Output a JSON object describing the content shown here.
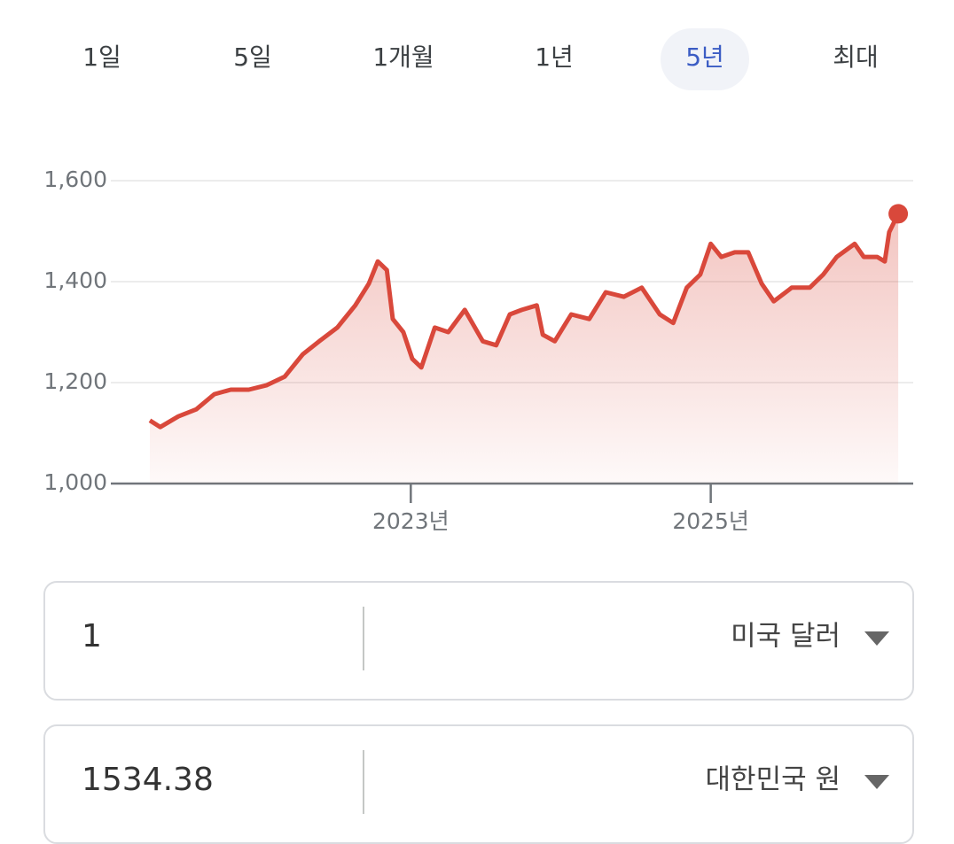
{
  "tabs": [
    "1일",
    "5일",
    "1개월",
    "1년",
    "5년",
    "최대"
  ],
  "selected_tab": 4,
  "chart_data": {
    "type": "line",
    "x": [
      2021.26,
      2021.33,
      2021.45,
      2021.57,
      2021.69,
      2021.8,
      2021.92,
      2022.04,
      2022.16,
      2022.28,
      2022.39,
      2022.51,
      2022.63,
      2022.72,
      2022.78,
      2022.84,
      2022.88,
      2022.95,
      2023.01,
      2023.07,
      2023.16,
      2023.25,
      2023.36,
      2023.48,
      2023.57,
      2023.66,
      2023.74,
      2023.84,
      2023.88,
      2023.96,
      2024.07,
      2024.19,
      2024.3,
      2024.42,
      2024.54,
      2024.66,
      2024.75,
      2024.84,
      2024.93,
      2025.0,
      2025.07,
      2025.16,
      2025.25,
      2025.34,
      2025.42,
      2025.54,
      2025.66,
      2025.75,
      2025.84,
      2025.96,
      2026.02,
      2026.11,
      2026.16,
      2026.19,
      2026.25
    ],
    "series": [
      {
        "color": "#d9483b",
        "values": [
          1125,
          1112,
          1133,
          1147,
          1177,
          1186,
          1186,
          1195,
          1212,
          1256,
          1282,
          1309,
          1353,
          1396,
          1440,
          1423,
          1326,
          1300,
          1247,
          1230,
          1309,
          1300,
          1344,
          1282,
          1274,
          1335,
          1344,
          1353,
          1295,
          1282,
          1335,
          1326,
          1379,
          1370,
          1388,
          1335,
          1318,
          1388,
          1414,
          1475,
          1449,
          1458,
          1458,
          1396,
          1361,
          1388,
          1388,
          1414,
          1449,
          1475,
          1449,
          1449,
          1440,
          1498,
          1534.38
        ]
      }
    ],
    "xlim": [
      2021,
      2026.35
    ],
    "xticks": [
      {
        "value": 2023,
        "label": "2023년"
      },
      {
        "value": 2025,
        "label": "2025년"
      }
    ],
    "ylim": [
      1000,
      1600
    ],
    "yticks": [
      {
        "value": 1000,
        "label": "1,000"
      },
      {
        "value": 1200,
        "label": "1,200"
      },
      {
        "value": 1400,
        "label": "1,400"
      },
      {
        "value": 1600,
        "label": "1,600"
      }
    ],
    "grid": true
  },
  "converter": [
    {
      "amount": "1",
      "currency": "미국 달러"
    },
    {
      "amount": "1534.38",
      "currency": "대한민국 원"
    }
  ]
}
